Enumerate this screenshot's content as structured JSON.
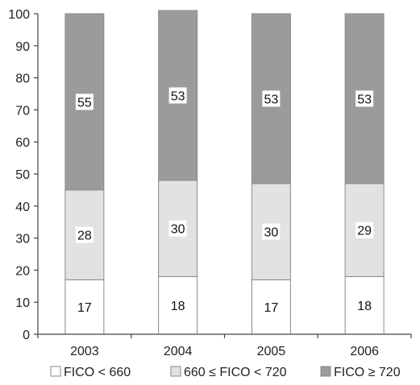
{
  "chart_data": {
    "type": "bar",
    "stacked": true,
    "categories": [
      "2003",
      "2004",
      "2005",
      "2006"
    ],
    "series": [
      {
        "name": "FICO < 660",
        "values": [
          17,
          18,
          17,
          18
        ],
        "color": "#ffffff"
      },
      {
        "name": "660 ≤ FICO < 720",
        "values": [
          28,
          30,
          30,
          29
        ],
        "color": "#e2e2e2"
      },
      {
        "name": "FICO ≥ 720",
        "values": [
          55,
          53,
          53,
          53
        ],
        "color": "#9b9b9b"
      }
    ],
    "data_labels": [
      [
        "17",
        "18",
        "17",
        "18"
      ],
      [
        "28",
        "30",
        "30",
        "29"
      ],
      [
        "55",
        "53",
        "53",
        "53"
      ]
    ],
    "yticks": [
      0,
      10,
      20,
      30,
      40,
      50,
      60,
      70,
      80,
      90,
      100
    ],
    "ylim": [
      0,
      100
    ],
    "title": "",
    "xlabel": "",
    "ylabel": "",
    "grid": false,
    "legend_position": "bottom"
  }
}
